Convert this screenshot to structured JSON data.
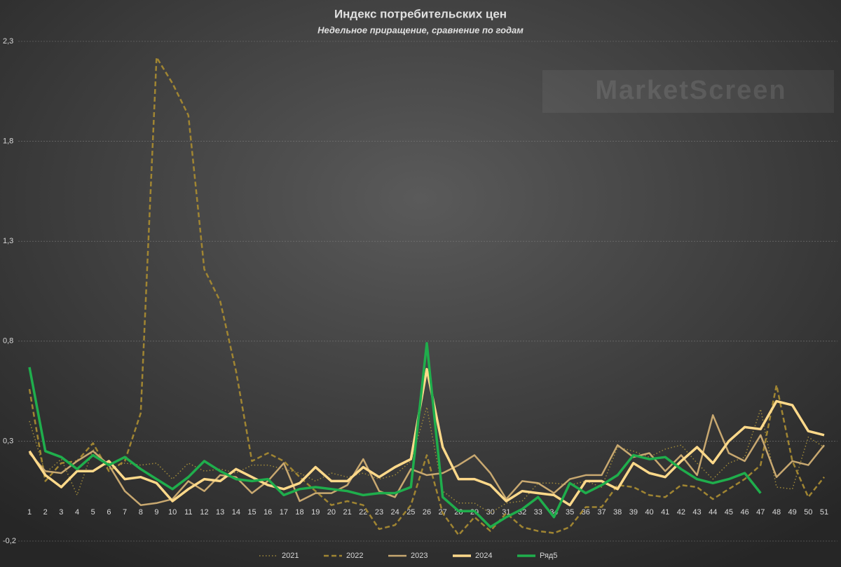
{
  "chart_data": {
    "type": "line",
    "title": "Индекс потребительских цен",
    "subtitle": "Недельное приращение, сравнение по годам",
    "watermark": "MarketScreen",
    "categories": [
      "1",
      "2",
      "3",
      "4",
      "5",
      "6",
      "7",
      "8",
      "9",
      "10",
      "11",
      "12",
      "13",
      "14",
      "15",
      "16",
      "17",
      "18",
      "19",
      "20",
      "21",
      "22",
      "23",
      "24",
      "25",
      "26",
      "27",
      "28",
      "29",
      "30",
      "31",
      "32",
      "33",
      "34",
      "35",
      "36",
      "37",
      "38",
      "39",
      "40",
      "41",
      "42",
      "43",
      "44",
      "45",
      "46",
      "47",
      "48",
      "49",
      "50",
      "51"
    ],
    "ylim": [
      -0.2,
      2.3
    ],
    "yticks": [
      {
        "value": -0.2,
        "label": "-0,2"
      },
      {
        "value": 0.3,
        "label": "0,3"
      },
      {
        "value": 0.8,
        "label": "0,8"
      },
      {
        "value": 1.3,
        "label": "1,3"
      },
      {
        "value": 1.8,
        "label": "1,8"
      },
      {
        "value": 2.3,
        "label": "2,3"
      }
    ],
    "grid": true,
    "legend": "bottom",
    "series": [
      {
        "name": "2021",
        "color": "#a08a3a",
        "dash": "dotted",
        "width": 1.5,
        "values": [
          0.4,
          0.14,
          0.21,
          0.03,
          0.26,
          0.16,
          0.19,
          0.18,
          0.19,
          0.11,
          0.19,
          0.15,
          0.16,
          0.14,
          0.18,
          0.18,
          0.16,
          0.14,
          0.1,
          0.14,
          0.12,
          0.14,
          0.11,
          0.13,
          0.2,
          0.47,
          0.05,
          -0.01,
          -0.01,
          -0.06,
          -0.01,
          0.0,
          0.09,
          0.09,
          0.08,
          0.1,
          0.07,
          0.27,
          0.25,
          0.22,
          0.26,
          0.28,
          0.19,
          0.11,
          0.19,
          0.22,
          0.46,
          0.07,
          0.06,
          0.32,
          0.27
        ]
      },
      {
        "name": "2022",
        "color": "#a08532",
        "dash": "dashed",
        "width": 2.5,
        "values": [
          0.56,
          0.1,
          0.19,
          0.2,
          0.29,
          0.15,
          0.2,
          0.44,
          2.22,
          2.09,
          1.93,
          1.16,
          1.0,
          0.65,
          0.2,
          0.24,
          0.2,
          0.12,
          0.05,
          -0.02,
          0.0,
          -0.02,
          -0.14,
          -0.12,
          -0.02,
          0.23,
          -0.06,
          -0.17,
          -0.08,
          -0.15,
          -0.06,
          -0.13,
          -0.15,
          -0.16,
          -0.13,
          -0.03,
          -0.03,
          0.08,
          0.07,
          0.03,
          0.02,
          0.08,
          0.07,
          0.01,
          0.06,
          0.11,
          0.18,
          0.58,
          0.2,
          0.02,
          0.12
        ]
      },
      {
        "name": "2023",
        "color": "#c8a870",
        "dash": "solid",
        "width": 2.5,
        "values": [
          0.24,
          0.15,
          0.14,
          0.2,
          0.25,
          0.18,
          0.05,
          -0.02,
          -0.01,
          0.01,
          0.1,
          0.05,
          0.13,
          0.12,
          0.04,
          0.1,
          0.19,
          0.0,
          0.04,
          0.04,
          0.08,
          0.21,
          0.05,
          0.02,
          0.16,
          0.13,
          0.14,
          0.18,
          0.23,
          0.14,
          0.01,
          0.1,
          0.09,
          0.04,
          0.11,
          0.13,
          0.13,
          0.28,
          0.22,
          0.24,
          0.15,
          0.23,
          0.13,
          0.43,
          0.24,
          0.2,
          0.33,
          0.12,
          0.2,
          0.18,
          0.28
        ]
      },
      {
        "name": "2024",
        "color": "#ffd98a",
        "dash": "solid",
        "width": 3.5,
        "values": [
          0.25,
          0.13,
          0.07,
          0.15,
          0.15,
          0.2,
          0.11,
          0.12,
          0.09,
          0.0,
          0.06,
          0.11,
          0.1,
          0.16,
          0.12,
          0.08,
          0.06,
          0.09,
          0.17,
          0.1,
          0.1,
          0.17,
          0.12,
          0.17,
          0.21,
          0.66,
          0.27,
          0.11,
          0.11,
          0.08,
          0.0,
          0.05,
          0.04,
          0.03,
          -0.02,
          0.1,
          0.1,
          0.06,
          0.19,
          0.14,
          0.12,
          0.2,
          0.27,
          0.19,
          0.3,
          0.37,
          0.36,
          0.5,
          0.48,
          0.35,
          0.33
        ]
      },
      {
        "name": "Ряд5",
        "color": "#1fae4c",
        "dash": "solid",
        "width": 3.5,
        "values": [
          0.67,
          0.25,
          0.22,
          0.16,
          0.23,
          0.18,
          0.22,
          0.16,
          0.11,
          0.06,
          0.12,
          0.2,
          0.15,
          0.11,
          0.1,
          0.11,
          0.03,
          0.06,
          0.07,
          0.06,
          0.05,
          0.03,
          0.04,
          0.04,
          0.07,
          0.79,
          0.02,
          -0.05,
          -0.05,
          -0.13,
          -0.08,
          -0.04,
          0.02,
          -0.08,
          0.09,
          0.04,
          0.08,
          0.13,
          0.23,
          0.21,
          0.22,
          0.16,
          0.11,
          0.09,
          0.11,
          0.14,
          0.04,
          null,
          null,
          null,
          null
        ]
      }
    ]
  }
}
